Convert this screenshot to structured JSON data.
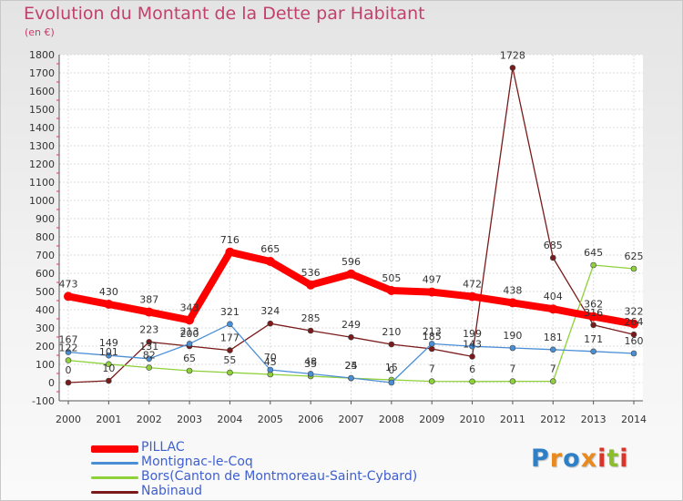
{
  "title": "Evolution du Montant de la Dette par Habitant",
  "subtitle": "(en €)",
  "logo_text": "Proxiti",
  "chart_data": {
    "type": "line",
    "x": [
      "2000",
      "2001",
      "2002",
      "2003",
      "2004",
      "2005",
      "2006",
      "2007",
      "2008",
      "2009",
      "2010",
      "2011",
      "2012",
      "2013",
      "2014"
    ],
    "ylim": [
      -100,
      1800
    ],
    "yticks": [
      -100,
      0,
      100,
      200,
      300,
      400,
      500,
      600,
      700,
      800,
      900,
      1000,
      1100,
      1200,
      1300,
      1400,
      1500,
      1600,
      1700,
      1800
    ],
    "grid": true,
    "legend_position": "bottom-left",
    "series": [
      {
        "name": "PILLAC",
        "color": "#ff0000",
        "values": [
          473,
          430,
          387,
          343,
          716,
          665,
          536,
          596,
          505,
          497,
          472,
          438,
          404,
          362,
          322
        ],
        "labels": [
          "473",
          "430",
          "387",
          "343",
          "716",
          "665",
          "536",
          "596",
          "505",
          "497",
          "472",
          "438",
          "404",
          "362",
          "322"
        ]
      },
      {
        "name": "Montignac-le-Coq",
        "color": "#4a8fd6",
        "values": [
          167,
          149,
          131,
          213,
          321,
          70,
          48,
          25,
          0,
          213,
          199,
          190,
          181,
          171,
          160
        ],
        "labels": [
          "167",
          "149",
          "131",
          "213",
          "321",
          "70",
          "48",
          "25",
          "0",
          "213",
          "199",
          "190",
          "181",
          "171",
          "160"
        ]
      },
      {
        "name": "Bors(Canton de Montmoreau-Saint-Cybard)",
        "color": "#8ed13a",
        "values": [
          122,
          101,
          82,
          65,
          55,
          45,
          35,
          24,
          15,
          7,
          6,
          7,
          7,
          645,
          625
        ],
        "labels": [
          "122",
          "101",
          "82",
          "65",
          "55",
          "45",
          "35",
          "24",
          "15",
          "7",
          "6",
          "7",
          "7",
          "645",
          "625"
        ]
      },
      {
        "name": "Nabinaud",
        "color": "#7a1a1a",
        "values": [
          0,
          10,
          223,
          200,
          177,
          324,
          285,
          249,
          210,
          185,
          143,
          1728,
          685,
          316,
          264
        ],
        "labels": [
          "0",
          "10",
          "223",
          "200",
          "177",
          "324",
          "285",
          "249",
          "210",
          "185",
          "143",
          "1728",
          "685",
          "316",
          "264"
        ]
      }
    ]
  }
}
